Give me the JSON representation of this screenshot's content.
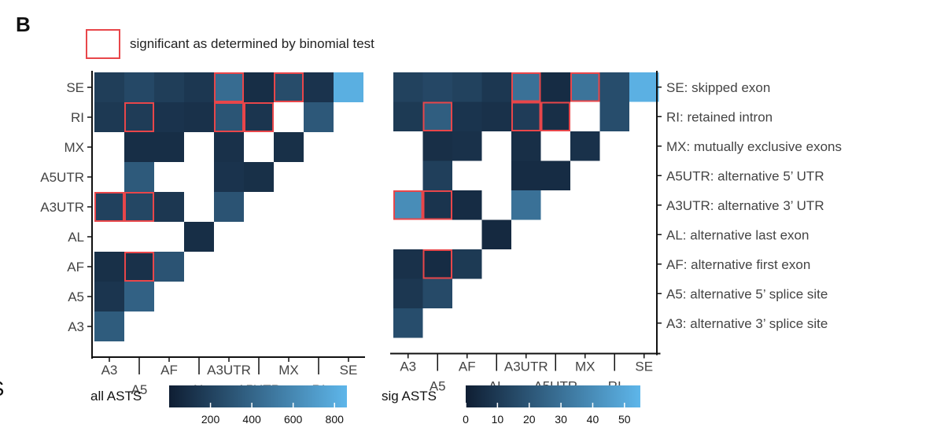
{
  "figure": {
    "panel_label": "B",
    "stray_label": "S",
    "legend_text": "significant as determined by binomial test",
    "legend_border_color": "#e8464a",
    "colors": {
      "low": "#0f1e33",
      "high": "#5eb6ea",
      "sig_border": "#e8464a"
    }
  },
  "chart_data": [
    {
      "type": "heatmap",
      "name": "all ASTS",
      "y_categories": [
        "SE",
        "RI",
        "MX",
        "A5UTR",
        "A3UTR",
        "AL",
        "AF",
        "A5",
        "A3"
      ],
      "x_categories": [
        "A3",
        "A5",
        "AF",
        "AL",
        "A3UTR",
        "A5UTR",
        "MX",
        "RI",
        "SE"
      ],
      "x_tick_rows": [
        "top",
        "bottom",
        "top",
        "bottom",
        "top",
        "bottom",
        "top",
        "bottom",
        "top"
      ],
      "colorbar": {
        "title": "all ASTS",
        "range": [
          0,
          860
        ],
        "ticks": [
          200,
          400,
          600,
          800
        ]
      },
      "cells": [
        {
          "row": "SE",
          "col": "A3",
          "value": 180,
          "sig": false
        },
        {
          "row": "SE",
          "col": "A5",
          "value": 240,
          "sig": false
        },
        {
          "row": "SE",
          "col": "AF",
          "value": 180,
          "sig": false
        },
        {
          "row": "SE",
          "col": "AL",
          "value": 140,
          "sig": false
        },
        {
          "row": "SE",
          "col": "A3UTR",
          "value": 440,
          "sig": true
        },
        {
          "row": "SE",
          "col": "A5UTR",
          "value": 90,
          "sig": false
        },
        {
          "row": "SE",
          "col": "MX",
          "value": 260,
          "sig": true
        },
        {
          "row": "SE",
          "col": "RI",
          "value": 120,
          "sig": false
        },
        {
          "row": "SE",
          "col": "SE",
          "value": 820,
          "sig": false
        },
        {
          "row": "RI",
          "col": "A3",
          "value": 150,
          "sig": false
        },
        {
          "row": "RI",
          "col": "A5",
          "value": 170,
          "sig": true
        },
        {
          "row": "RI",
          "col": "AF",
          "value": 120,
          "sig": false
        },
        {
          "row": "RI",
          "col": "AL",
          "value": 110,
          "sig": false
        },
        {
          "row": "RI",
          "col": "A3UTR",
          "value": 310,
          "sig": true
        },
        {
          "row": "RI",
          "col": "A5UTR",
          "value": 130,
          "sig": true
        },
        {
          "row": "RI",
          "col": "RI",
          "value": 330,
          "sig": false
        },
        {
          "row": "MX",
          "col": "A5",
          "value": 90,
          "sig": false
        },
        {
          "row": "MX",
          "col": "AF",
          "value": 90,
          "sig": false
        },
        {
          "row": "MX",
          "col": "A3UTR",
          "value": 110,
          "sig": false
        },
        {
          "row": "MX",
          "col": "MX",
          "value": 100,
          "sig": false
        },
        {
          "row": "A5UTR",
          "col": "A5",
          "value": 340,
          "sig": false
        },
        {
          "row": "A5UTR",
          "col": "A3UTR",
          "value": 120,
          "sig": false
        },
        {
          "row": "A5UTR",
          "col": "A5UTR",
          "value": 100,
          "sig": false
        },
        {
          "row": "A3UTR",
          "col": "A3",
          "value": 200,
          "sig": true
        },
        {
          "row": "A3UTR",
          "col": "A5",
          "value": 230,
          "sig": true
        },
        {
          "row": "A3UTR",
          "col": "AF",
          "value": 140,
          "sig": false
        },
        {
          "row": "A3UTR",
          "col": "A3UTR",
          "value": 300,
          "sig": false
        },
        {
          "row": "AL",
          "col": "AL",
          "value": 90,
          "sig": false
        },
        {
          "row": "AF",
          "col": "A3",
          "value": 100,
          "sig": false
        },
        {
          "row": "AF",
          "col": "A5",
          "value": 110,
          "sig": true
        },
        {
          "row": "AF",
          "col": "AF",
          "value": 300,
          "sig": false
        },
        {
          "row": "A5",
          "col": "A3",
          "value": 130,
          "sig": false
        },
        {
          "row": "A5",
          "col": "A5",
          "value": 380,
          "sig": false
        },
        {
          "row": "A3",
          "col": "A3",
          "value": 350,
          "sig": false
        }
      ]
    },
    {
      "type": "heatmap",
      "name": "sig ASTS",
      "y_categories": [
        "SE",
        "RI",
        "MX",
        "A5UTR",
        "A3UTR",
        "AL",
        "AF",
        "A5",
        "A3"
      ],
      "y_labels_right": [
        "SE: skipped exon",
        "RI: retained intron",
        "MX: mutually exclusive exons",
        "A5UTR: alternative 5’ UTR",
        "A3UTR: alternative 3’ UTR",
        "AL: alternative last exon",
        "AF: alternative first exon",
        "A5: alternative 5’ splice site",
        "A3: alternative 3’ splice site"
      ],
      "x_categories": [
        "A3",
        "A5",
        "AF",
        "AL",
        "A3UTR",
        "A5UTR",
        "MX",
        "RI",
        "SE"
      ],
      "x_tick_rows": [
        "top",
        "bottom",
        "top",
        "bottom",
        "top",
        "bottom",
        "top",
        "bottom",
        "top"
      ],
      "colorbar": {
        "title": "sig ASTS",
        "range": [
          0,
          55
        ],
        "ticks": [
          0,
          10,
          20,
          30,
          40,
          50
        ]
      },
      "cells": [
        {
          "row": "SE",
          "col": "A3",
          "value": 13,
          "sig": false
        },
        {
          "row": "SE",
          "col": "A5",
          "value": 15,
          "sig": false
        },
        {
          "row": "SE",
          "col": "AF",
          "value": 13,
          "sig": false
        },
        {
          "row": "SE",
          "col": "AL",
          "value": 9,
          "sig": false
        },
        {
          "row": "SE",
          "col": "A3UTR",
          "value": 30,
          "sig": true
        },
        {
          "row": "SE",
          "col": "A5UTR",
          "value": 5,
          "sig": false
        },
        {
          "row": "SE",
          "col": "MX",
          "value": 31,
          "sig": true
        },
        {
          "row": "SE",
          "col": "RI",
          "value": 17,
          "sig": false
        },
        {
          "row": "SE",
          "col": "SE",
          "value": 53,
          "sig": false
        },
        {
          "row": "RI",
          "col": "A3",
          "value": 10,
          "sig": false
        },
        {
          "row": "RI",
          "col": "A5",
          "value": 23,
          "sig": true
        },
        {
          "row": "RI",
          "col": "AF",
          "value": 8,
          "sig": false
        },
        {
          "row": "RI",
          "col": "AL",
          "value": 7,
          "sig": false
        },
        {
          "row": "RI",
          "col": "A3UTR",
          "value": 11,
          "sig": true
        },
        {
          "row": "RI",
          "col": "A5UTR",
          "value": 6,
          "sig": true
        },
        {
          "row": "RI",
          "col": "RI",
          "value": 17,
          "sig": false
        },
        {
          "row": "MX",
          "col": "A5",
          "value": 6,
          "sig": false
        },
        {
          "row": "MX",
          "col": "AF",
          "value": 7,
          "sig": false
        },
        {
          "row": "MX",
          "col": "A3UTR",
          "value": 6,
          "sig": false
        },
        {
          "row": "MX",
          "col": "MX",
          "value": 7,
          "sig": false
        },
        {
          "row": "A5UTR",
          "col": "A5",
          "value": 12,
          "sig": false
        },
        {
          "row": "A5UTR",
          "col": "A3UTR",
          "value": 5,
          "sig": false
        },
        {
          "row": "A5UTR",
          "col": "A5UTR",
          "value": 5,
          "sig": false
        },
        {
          "row": "A3UTR",
          "col": "A3",
          "value": 40,
          "sig": true
        },
        {
          "row": "A3UTR",
          "col": "A5",
          "value": 8,
          "sig": true
        },
        {
          "row": "A3UTR",
          "col": "AF",
          "value": 5,
          "sig": false
        },
        {
          "row": "A3UTR",
          "col": "A3UTR",
          "value": 30,
          "sig": false
        },
        {
          "row": "AL",
          "col": "AL",
          "value": 4,
          "sig": false
        },
        {
          "row": "AF",
          "col": "A3",
          "value": 7,
          "sig": false
        },
        {
          "row": "AF",
          "col": "A5",
          "value": 5,
          "sig": true
        },
        {
          "row": "AF",
          "col": "AF",
          "value": 10,
          "sig": false
        },
        {
          "row": "A5",
          "col": "A3",
          "value": 9,
          "sig": false
        },
        {
          "row": "A5",
          "col": "A5",
          "value": 16,
          "sig": false
        },
        {
          "row": "A3",
          "col": "A3",
          "value": 17,
          "sig": false
        }
      ]
    }
  ]
}
